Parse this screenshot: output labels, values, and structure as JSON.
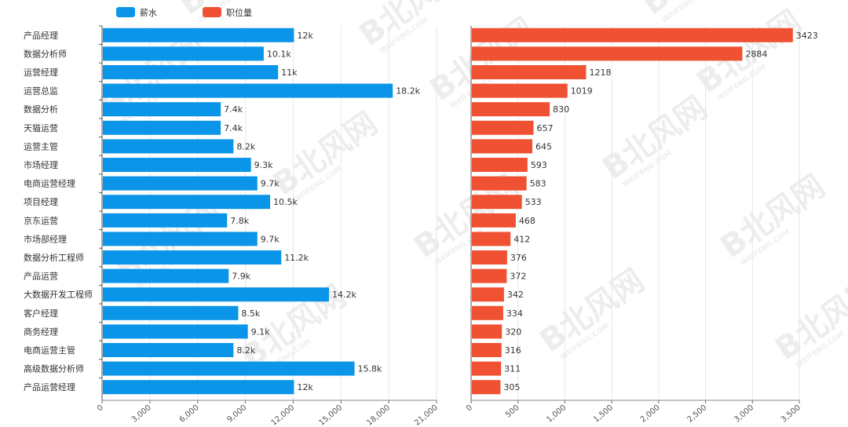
{
  "chart_data": {
    "type": "bar",
    "orientation": "horizontal",
    "categories": [
      "产品经理",
      "数据分析师",
      "运营经理",
      "运营总监",
      "数据分析",
      "天猫运营",
      "运营主管",
      "市场经理",
      "电商运营经理",
      "项目经理",
      "京东运营",
      "市场部经理",
      "数据分析工程师",
      "产品运营",
      "大数据开发工程师",
      "客户经理",
      "商务经理",
      "电商运营主管",
      "高级数据分析师",
      "产品运营经理"
    ],
    "series": [
      {
        "name": "薪水",
        "color": "#0b95e8",
        "values": [
          12000,
          10100,
          11000,
          18200,
          7400,
          7400,
          8200,
          9300,
          9700,
          10500,
          7800,
          9700,
          11200,
          7900,
          14200,
          8500,
          9100,
          8200,
          15800,
          12000
        ],
        "labels": [
          "12k",
          "10.1k",
          "11k",
          "18.2k",
          "7.4k",
          "7.4k",
          "8.2k",
          "9.3k",
          "9.7k",
          "10.5k",
          "7.8k",
          "9.7k",
          "11.2k",
          "7.9k",
          "14.2k",
          "8.5k",
          "9.1k",
          "8.2k",
          "15.8k",
          "12k"
        ],
        "xlim": [
          0,
          21000
        ],
        "ticks": [
          "0",
          "3,000",
          "6,000",
          "9,000",
          "12,000",
          "15,000",
          "18,000",
          "21,000"
        ]
      },
      {
        "name": "职位量",
        "color": "#f05133",
        "values": [
          3423,
          2884,
          1218,
          1019,
          830,
          657,
          645,
          593,
          583,
          533,
          468,
          412,
          376,
          372,
          342,
          334,
          320,
          316,
          311,
          305
        ],
        "labels": [
          "3423",
          "2884",
          "1218",
          "1019",
          "830",
          "657",
          "645",
          "593",
          "583",
          "533",
          "468",
          "412",
          "376",
          "372",
          "342",
          "334",
          "320",
          "316",
          "311",
          "305"
        ],
        "xlim": [
          0,
          3500
        ],
        "ticks": [
          "0",
          "500",
          "1,000",
          "1,500",
          "2,000",
          "2,500",
          "3,000",
          "3,500"
        ]
      }
    ],
    "legend": "top-left",
    "grid": true
  },
  "watermark": {
    "brand": "B北风网",
    "site": "IBEIFENG.COM"
  }
}
